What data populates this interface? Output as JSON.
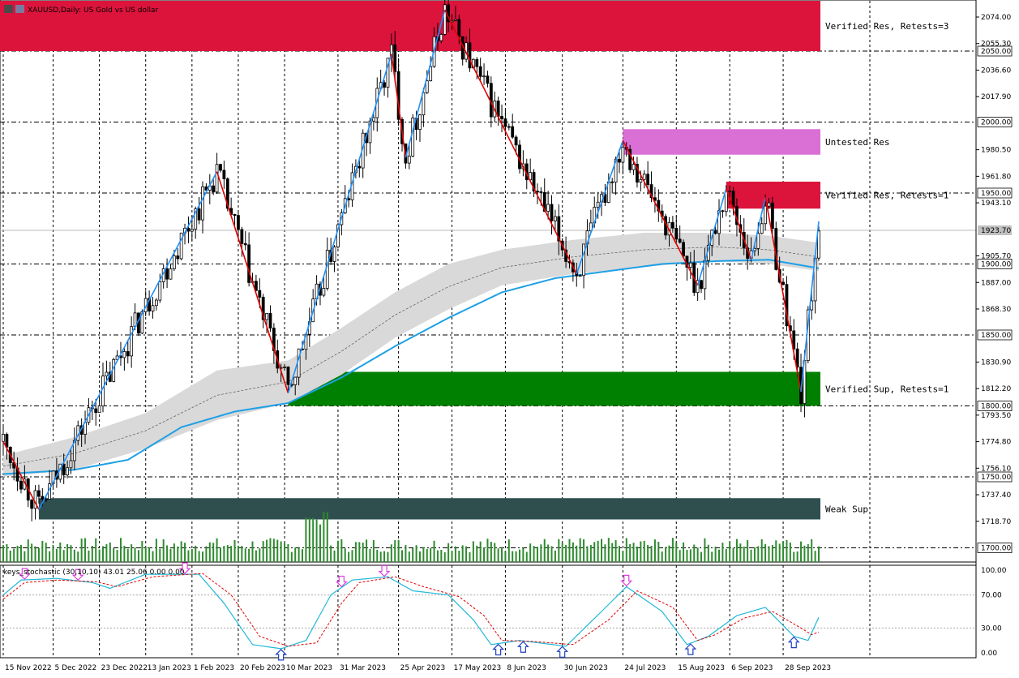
{
  "chart_data": {
    "type": "candlestick",
    "title": "XAUUSD,Daily: US Gold vs US dollar",
    "symbol": "XAUUSD",
    "timeframe": "Daily",
    "description": "US Gold vs US dollar",
    "current_price": 1923.7,
    "ylim": [
      1690,
      2086
    ],
    "price_ticks": [
      2074.0,
      2055.3,
      2036.6,
      2017.9,
      1980.5,
      1961.8,
      1943.1,
      1905.7,
      1887.0,
      1868.3,
      1830.9,
      1812.2,
      1793.5,
      1774.8,
      1756.1,
      1737.4,
      1718.7
    ],
    "round_levels": [
      2050.0,
      2000.0,
      1950.0,
      1900.0,
      1850.0,
      1800.0,
      1750.0,
      1700.0
    ],
    "date_labels": [
      "15 Nov 2022",
      "5 Dec 2022",
      "23 Dec 2022",
      "13 Jan 2023",
      "1 Feb 2023",
      "20 Feb 2023",
      "10 Mar 2023",
      "31 Mar 2023",
      "25 Apr 2023",
      "17 May 2023",
      "8 Jun 2023",
      "30 Jun 2023",
      "24 Jul 2023",
      "15 Aug 2023",
      "6 Sep 2023",
      "28 Sep 2023"
    ],
    "date_label_bars": [
      0,
      14,
      27,
      40,
      53,
      66,
      79,
      94,
      111,
      126,
      141,
      157,
      174,
      189,
      204,
      219
    ],
    "bar_count": 230,
    "zigzag": [
      {
        "bar": 0,
        "price": 1775,
        "dir": "down"
      },
      {
        "bar": 10,
        "price": 1727,
        "dir": "up"
      },
      {
        "bar": 60,
        "price": 1965,
        "dir": "down"
      },
      {
        "bar": 80,
        "price": 1809,
        "dir": "up"
      },
      {
        "bar": 109,
        "price": 2048,
        "dir": "down"
      },
      {
        "bar": 113,
        "price": 1975,
        "dir": "up"
      },
      {
        "bar": 124,
        "price": 2079,
        "dir": "down"
      },
      {
        "bar": 161,
        "price": 1893,
        "dir": "up"
      },
      {
        "bar": 174,
        "price": 1987,
        "dir": "down"
      },
      {
        "bar": 195,
        "price": 1885,
        "dir": "up"
      },
      {
        "bar": 203,
        "price": 1953,
        "dir": "down"
      },
      {
        "bar": 210,
        "price": 1903,
        "dir": "up"
      },
      {
        "bar": 214,
        "price": 1947,
        "dir": "down"
      },
      {
        "bar": 224,
        "price": 1810,
        "dir": "up"
      },
      {
        "bar": 229,
        "price": 1930,
        "dir": "down"
      }
    ],
    "zones": [
      {
        "label": "Verified Res, Retests=3",
        "low": 2050,
        "high": 2086,
        "color": "#dc143c"
      },
      {
        "label": "Untested Res",
        "low": 1977,
        "high": 1995,
        "color": "#da70d6"
      },
      {
        "label": "Verified Res, Retests=1",
        "low": 1939,
        "high": 1958,
        "color": "#dc143c"
      },
      {
        "label": "Verified Sup, Retests=1",
        "low": 1800,
        "high": 1824,
        "color": "#008000"
      },
      {
        "label": "Weak Sup",
        "low": 1720,
        "high": 1735,
        "color": "#2f4f4f"
      }
    ],
    "zone_start_bars": [
      0,
      174,
      203,
      80,
      10
    ],
    "ma_slow": [
      {
        "bar": 0,
        "price": 1752
      },
      {
        "bar": 20,
        "price": 1755
      },
      {
        "bar": 35,
        "price": 1762
      },
      {
        "bar": 50,
        "price": 1785
      },
      {
        "bar": 65,
        "price": 1796
      },
      {
        "bar": 80,
        "price": 1802
      },
      {
        "bar": 95,
        "price": 1820
      },
      {
        "bar": 110,
        "price": 1842
      },
      {
        "bar": 125,
        "price": 1862
      },
      {
        "bar": 140,
        "price": 1880
      },
      {
        "bar": 155,
        "price": 1890
      },
      {
        "bar": 170,
        "price": 1895
      },
      {
        "bar": 185,
        "price": 1900
      },
      {
        "bar": 200,
        "price": 1902
      },
      {
        "bar": 215,
        "price": 1903
      },
      {
        "bar": 229,
        "price": 1897
      }
    ],
    "ma_band_upper": [
      {
        "bar": 0,
        "price": 1765
      },
      {
        "bar": 20,
        "price": 1778
      },
      {
        "bar": 40,
        "price": 1795
      },
      {
        "bar": 60,
        "price": 1825
      },
      {
        "bar": 80,
        "price": 1832
      },
      {
        "bar": 95,
        "price": 1855
      },
      {
        "bar": 110,
        "price": 1880
      },
      {
        "bar": 125,
        "price": 1900
      },
      {
        "bar": 140,
        "price": 1910
      },
      {
        "bar": 160,
        "price": 1917
      },
      {
        "bar": 180,
        "price": 1922
      },
      {
        "bar": 200,
        "price": 1922
      },
      {
        "bar": 215,
        "price": 1920
      },
      {
        "bar": 229,
        "price": 1915
      }
    ],
    "ma_band_lower": [
      {
        "bar": 0,
        "price": 1750
      },
      {
        "bar": 20,
        "price": 1755
      },
      {
        "bar": 40,
        "price": 1770
      },
      {
        "bar": 60,
        "price": 1790
      },
      {
        "bar": 80,
        "price": 1802
      },
      {
        "bar": 95,
        "price": 1822
      },
      {
        "bar": 110,
        "price": 1848
      },
      {
        "bar": 125,
        "price": 1868
      },
      {
        "bar": 140,
        "price": 1885
      },
      {
        "bar": 160,
        "price": 1893
      },
      {
        "bar": 180,
        "price": 1898
      },
      {
        "bar": 200,
        "price": 1902
      },
      {
        "bar": 215,
        "price": 1900
      },
      {
        "bar": 229,
        "price": 1895
      }
    ],
    "stochastic": {
      "name": "keys_stochastic (30,10,10) 43.01 25.06 0.00 0.00",
      "ylim": [
        0,
        100
      ],
      "levels": [
        100.0,
        70.0,
        30.0,
        0.0
      ],
      "main": [
        {
          "bar": 0,
          "value": 70
        },
        {
          "bar": 5,
          "value": 88
        },
        {
          "bar": 15,
          "value": 90
        },
        {
          "bar": 25,
          "value": 85
        },
        {
          "bar": 30,
          "value": 78
        },
        {
          "bar": 40,
          "value": 95
        },
        {
          "bar": 55,
          "value": 95
        },
        {
          "bar": 62,
          "value": 60
        },
        {
          "bar": 70,
          "value": 10
        },
        {
          "bar": 78,
          "value": 5
        },
        {
          "bar": 85,
          "value": 15
        },
        {
          "bar": 92,
          "value": 70
        },
        {
          "bar": 98,
          "value": 88
        },
        {
          "bar": 108,
          "value": 92
        },
        {
          "bar": 115,
          "value": 75
        },
        {
          "bar": 125,
          "value": 70
        },
        {
          "bar": 132,
          "value": 40
        },
        {
          "bar": 137,
          "value": 10
        },
        {
          "bar": 145,
          "value": 15
        },
        {
          "bar": 158,
          "value": 8
        },
        {
          "bar": 168,
          "value": 50
        },
        {
          "bar": 175,
          "value": 80
        },
        {
          "bar": 185,
          "value": 50
        },
        {
          "bar": 192,
          "value": 10
        },
        {
          "bar": 198,
          "value": 20
        },
        {
          "bar": 206,
          "value": 45
        },
        {
          "bar": 214,
          "value": 55
        },
        {
          "bar": 222,
          "value": 20
        },
        {
          "bar": 226,
          "value": 15
        },
        {
          "bar": 229,
          "value": 43
        }
      ],
      "signal": [
        {
          "bar": 0,
          "value": 65
        },
        {
          "bar": 6,
          "value": 85
        },
        {
          "bar": 15,
          "value": 88
        },
        {
          "bar": 26,
          "value": 86
        },
        {
          "bar": 32,
          "value": 80
        },
        {
          "bar": 42,
          "value": 92
        },
        {
          "bar": 56,
          "value": 96
        },
        {
          "bar": 64,
          "value": 70
        },
        {
          "bar": 72,
          "value": 20
        },
        {
          "bar": 80,
          "value": 8
        },
        {
          "bar": 88,
          "value": 12
        },
        {
          "bar": 95,
          "value": 60
        },
        {
          "bar": 100,
          "value": 85
        },
        {
          "bar": 110,
          "value": 92
        },
        {
          "bar": 118,
          "value": 80
        },
        {
          "bar": 128,
          "value": 68
        },
        {
          "bar": 135,
          "value": 45
        },
        {
          "bar": 140,
          "value": 15
        },
        {
          "bar": 148,
          "value": 14
        },
        {
          "bar": 160,
          "value": 10
        },
        {
          "bar": 170,
          "value": 40
        },
        {
          "bar": 178,
          "value": 75
        },
        {
          "bar": 188,
          "value": 55
        },
        {
          "bar": 195,
          "value": 15
        },
        {
          "bar": 200,
          "value": 22
        },
        {
          "bar": 208,
          "value": 42
        },
        {
          "bar": 216,
          "value": 50
        },
        {
          "bar": 224,
          "value": 30
        },
        {
          "bar": 227,
          "value": 22
        },
        {
          "bar": 229,
          "value": 25
        }
      ],
      "arrows": [
        {
          "bar": 6,
          "dir": "down"
        },
        {
          "bar": 21,
          "dir": "down"
        },
        {
          "bar": 51,
          "dir": "down"
        },
        {
          "bar": 78,
          "dir": "up"
        },
        {
          "bar": 95,
          "dir": "down"
        },
        {
          "bar": 107,
          "dir": "down"
        },
        {
          "bar": 139,
          "dir": "up"
        },
        {
          "bar": 146,
          "dir": "up"
        },
        {
          "bar": 157,
          "dir": "up"
        },
        {
          "bar": 175,
          "dir": "down"
        },
        {
          "bar": 193,
          "dir": "up"
        },
        {
          "bar": 222,
          "dir": "up"
        }
      ]
    }
  }
}
